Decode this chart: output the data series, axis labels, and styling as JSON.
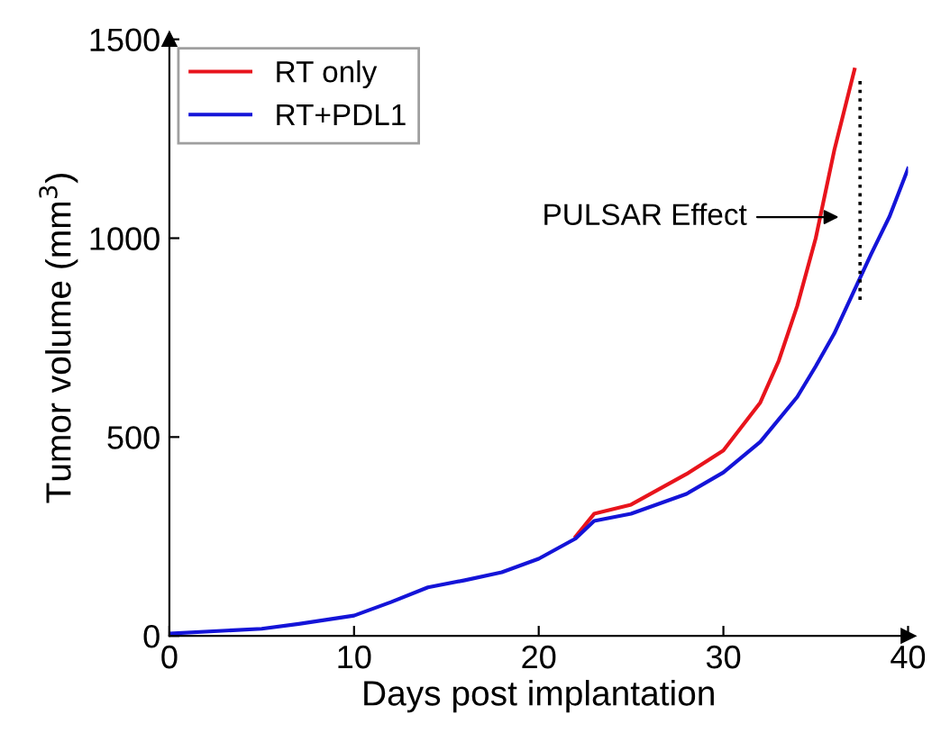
{
  "chart_data": {
    "type": "line",
    "xlabel": "Days post implantation",
    "ylabel": "Tumor volume (mm$^{3}$)",
    "xlim": [
      0,
      40
    ],
    "xticks": [
      0,
      10,
      20,
      30,
      40
    ],
    "ylim": [
      0,
      1500
    ],
    "yticks": [
      0,
      500,
      1000,
      1500
    ],
    "grid": false,
    "legend": "top left",
    "line_style": "solid",
    "series": [
      {
        "name": "RT only",
        "color": "#e8141c",
        "x": [
          22,
          23,
          25,
          28,
          30,
          32,
          33,
          34,
          35,
          36,
          37.1
        ],
        "values": [
          250,
          307,
          330,
          407,
          466,
          587,
          692,
          830,
          1000,
          1220,
          1424
        ]
      },
      {
        "name": "RT+PDL1",
        "color": "#1414d8",
        "x": [
          0,
          5,
          7,
          10,
          12,
          14,
          16,
          18,
          20,
          22,
          23,
          25,
          28,
          30,
          32,
          34,
          35,
          36,
          37,
          38,
          39,
          40
        ],
        "values": [
          6,
          18,
          30,
          51,
          85,
          122,
          140,
          160,
          194,
          245,
          289,
          307,
          357,
          411,
          488,
          601,
          678,
          760,
          860,
          960,
          1055,
          1175
        ]
      },
      {
        "color": "#000000",
        "line_style": "dotted",
        "x": [
          37.4,
          37.4
        ],
        "values": [
          845,
          1400
        ]
      }
    ],
    "annotations": [
      "PULSAR Effect"
    ]
  }
}
